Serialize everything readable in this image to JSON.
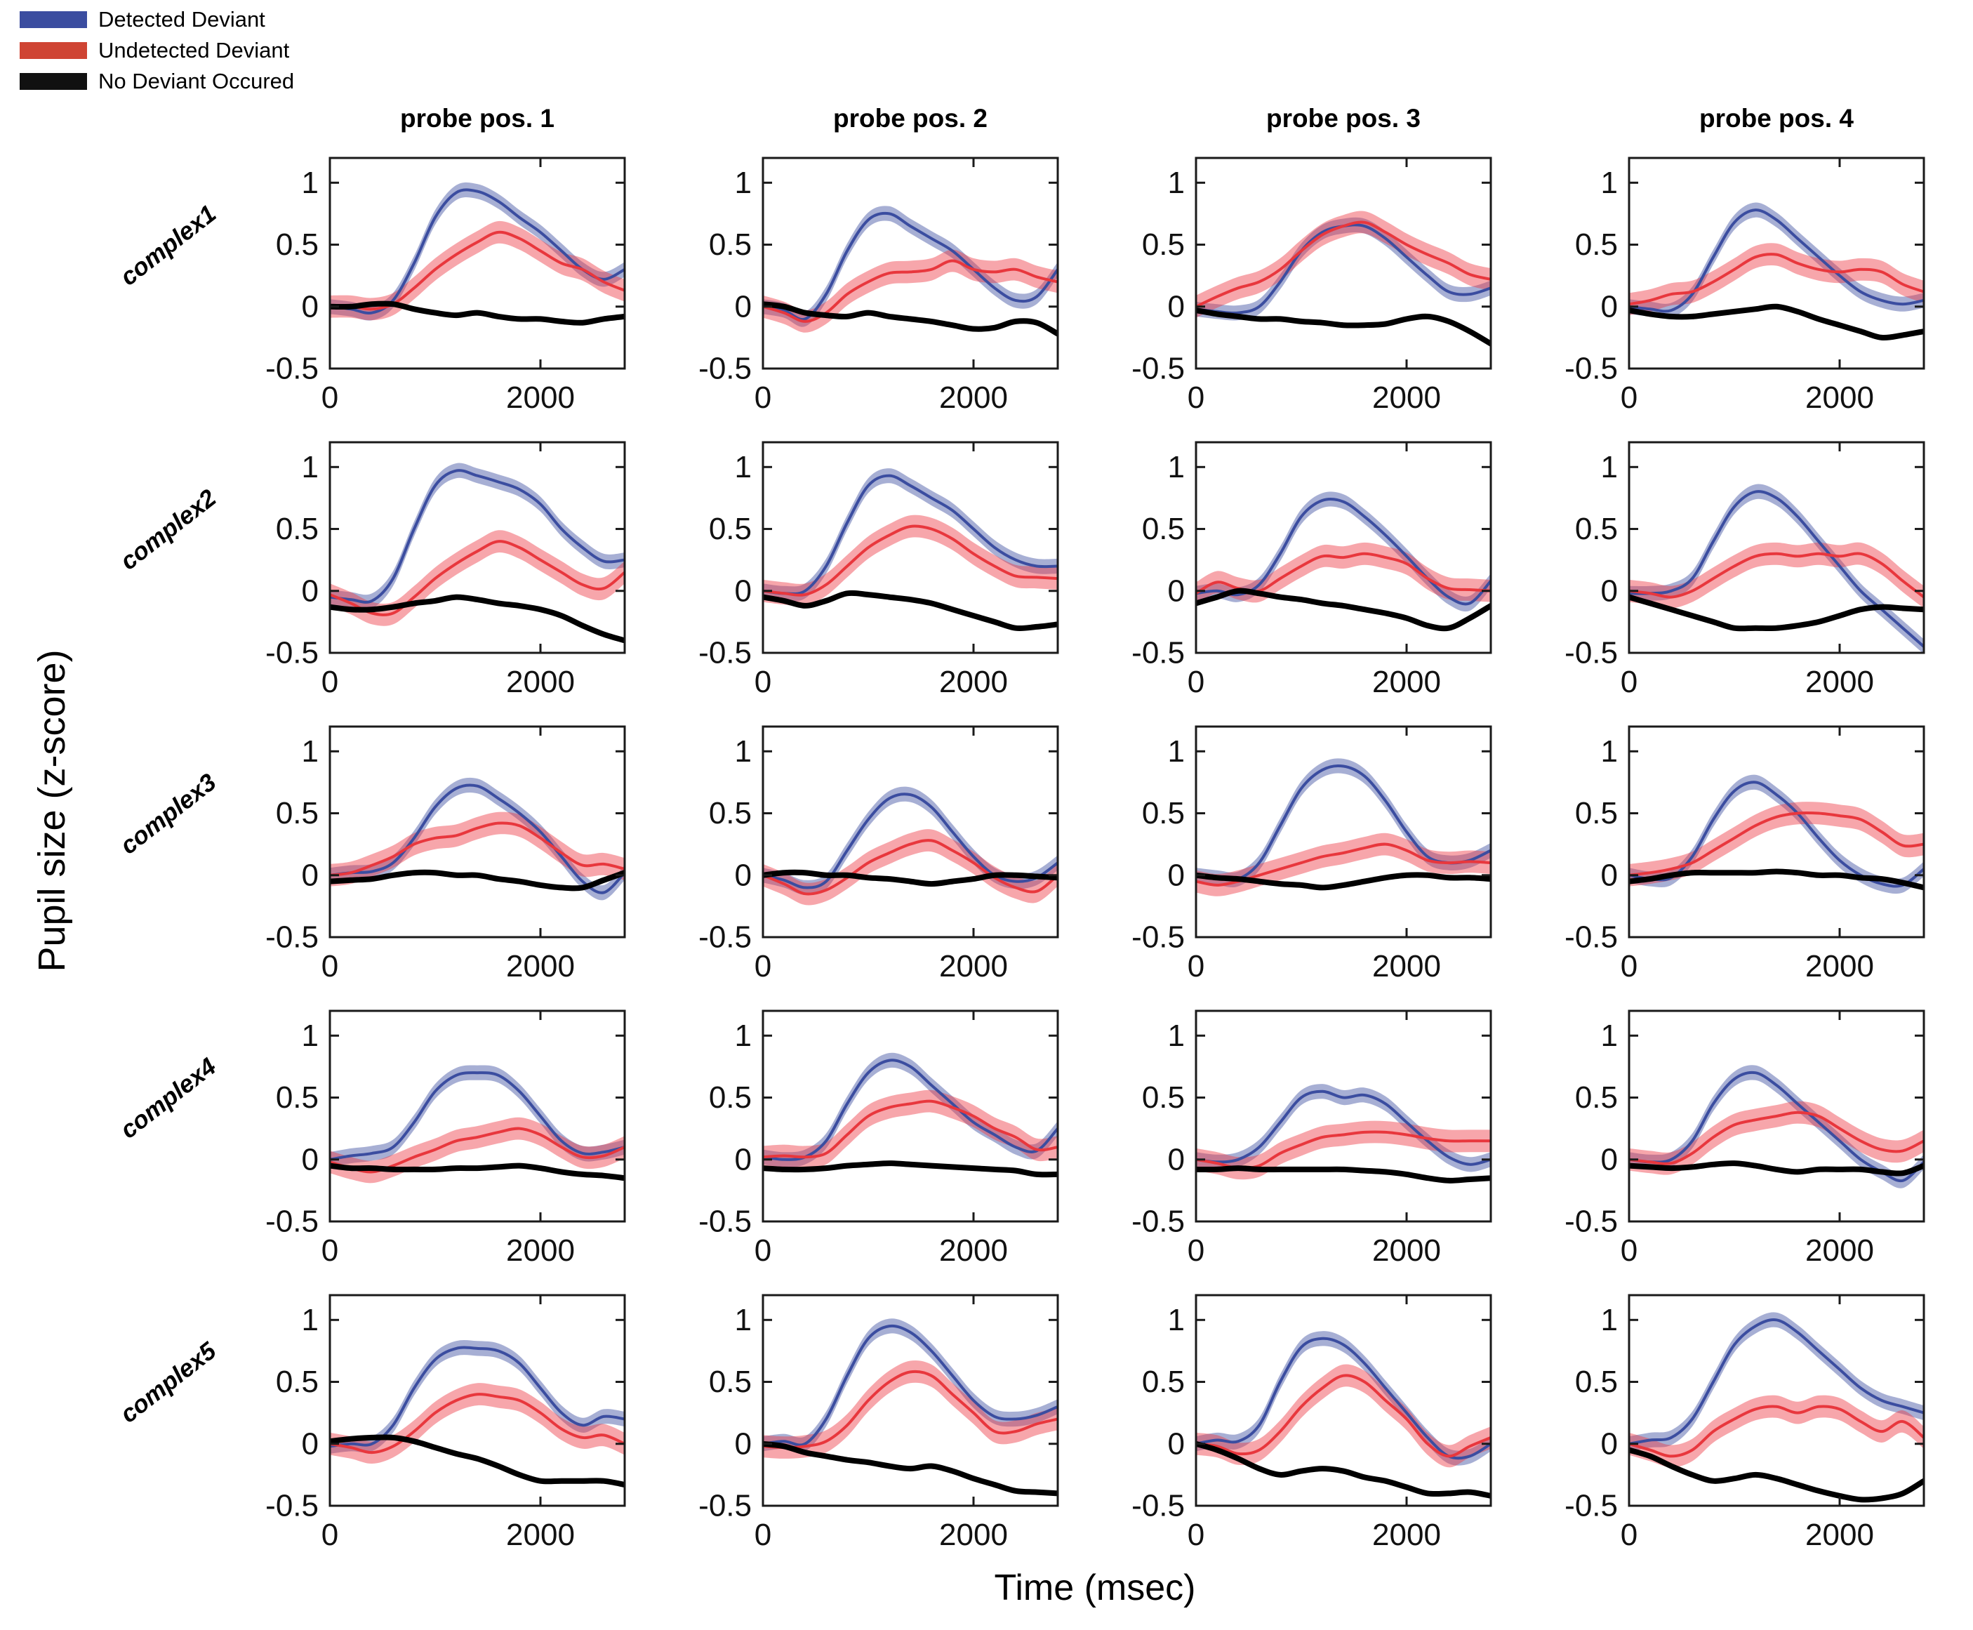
{
  "legend": {
    "items": [
      {
        "id": "detected",
        "label": "Detected Deviant",
        "color": "#3b4da0"
      },
      {
        "id": "undetected",
        "label": "Undetected Deviant",
        "color": "#cf4433"
      },
      {
        "id": "none",
        "label": "No Deviant Occured",
        "color": "#111111"
      }
    ]
  },
  "chart_data": {
    "type": "line",
    "title": "",
    "xlabel": "Time (msec)",
    "ylabel": "Pupil size (z-score)",
    "x_unit": "msec",
    "x": [
      0,
      200,
      400,
      600,
      800,
      1000,
      1200,
      1400,
      1600,
      1800,
      2000,
      2200,
      2400,
      2600,
      2800
    ],
    "xlim": [
      0,
      2800
    ],
    "ylim": [
      -0.5,
      1.2
    ],
    "xticks": [
      0,
      2000
    ],
    "yticks": [
      1,
      0.5,
      0,
      -0.5
    ],
    "grid": false,
    "legend_position": "top-left",
    "col_titles": [
      "probe pos. 1",
      "probe pos. 2",
      "probe pos. 3",
      "probe pos. 4"
    ],
    "row_titles": [
      "complex1",
      "complex2",
      "complex3",
      "complex4",
      "complex5"
    ],
    "series_meta": [
      {
        "key": "detected",
        "name": "Detected Deviant",
        "line_color": "#3b4da0",
        "fill_color": "#3b4da0",
        "fill_opacity": 0.45,
        "band": 0.06,
        "line_width": 4
      },
      {
        "key": "undetected",
        "name": "Undetected Deviant",
        "line_color": "#e8373d",
        "fill_color": "#ee3a44",
        "fill_opacity": 0.45,
        "band": 0.09,
        "line_width": 4
      },
      {
        "key": "none",
        "name": "No Deviant Occured",
        "line_color": "#000000",
        "fill_color": "#000000",
        "fill_opacity": 0.3,
        "band": 0.025,
        "line_width": 8
      }
    ],
    "subplots": [
      {
        "row": "complex1",
        "col": "probe pos. 1",
        "detected": [
          0,
          -0.02,
          -0.05,
          0.05,
          0.35,
          0.72,
          0.92,
          0.93,
          0.85,
          0.72,
          0.6,
          0.45,
          0.3,
          0.22,
          0.3
        ],
        "undetected": [
          0,
          0,
          -0.02,
          0.02,
          0.15,
          0.3,
          0.42,
          0.52,
          0.6,
          0.55,
          0.45,
          0.35,
          0.3,
          0.2,
          0.13
        ],
        "none": [
          0,
          0,
          0.02,
          0.02,
          -0.02,
          -0.05,
          -0.07,
          -0.05,
          -0.08,
          -0.1,
          -0.1,
          -0.12,
          -0.13,
          -0.1,
          -0.08
        ]
      },
      {
        "row": "complex1",
        "col": "probe pos. 2",
        "detected": [
          0,
          -0.03,
          -0.1,
          0.1,
          0.45,
          0.7,
          0.75,
          0.65,
          0.55,
          0.45,
          0.3,
          0.15,
          0.05,
          0.08,
          0.3
        ],
        "undetected": [
          0,
          -0.05,
          -0.12,
          -0.05,
          0.1,
          0.2,
          0.27,
          0.28,
          0.3,
          0.37,
          0.3,
          0.28,
          0.3,
          0.24,
          0.2
        ],
        "none": [
          0.02,
          0,
          -0.05,
          -0.07,
          -0.08,
          -0.05,
          -0.08,
          -0.1,
          -0.12,
          -0.15,
          -0.18,
          -0.17,
          -0.12,
          -0.13,
          -0.22
        ]
      },
      {
        "row": "complex1",
        "col": "probe pos. 3",
        "detected": [
          -0.02,
          -0.04,
          -0.05,
          0,
          0.2,
          0.45,
          0.6,
          0.65,
          0.65,
          0.55,
          0.4,
          0.25,
          0.12,
          0.1,
          0.15
        ],
        "undetected": [
          0,
          0.08,
          0.15,
          0.2,
          0.3,
          0.45,
          0.58,
          0.65,
          0.68,
          0.6,
          0.5,
          0.42,
          0.35,
          0.26,
          0.22
        ],
        "none": [
          -0.03,
          -0.06,
          -0.08,
          -0.1,
          -0.1,
          -0.12,
          -0.13,
          -0.15,
          -0.15,
          -0.14,
          -0.1,
          -0.08,
          -0.12,
          -0.2,
          -0.3
        ]
      },
      {
        "row": "complex1",
        "col": "probe pos. 4",
        "detected": [
          0,
          -0.02,
          -0.03,
          0.1,
          0.4,
          0.68,
          0.78,
          0.7,
          0.55,
          0.4,
          0.25,
          0.12,
          0.05,
          0.02,
          0.05
        ],
        "undetected": [
          0.02,
          0.05,
          0.1,
          0.12,
          0.2,
          0.3,
          0.4,
          0.42,
          0.35,
          0.3,
          0.28,
          0.3,
          0.28,
          0.18,
          0.12
        ],
        "none": [
          -0.03,
          -0.06,
          -0.08,
          -0.08,
          -0.06,
          -0.04,
          -0.02,
          0,
          -0.04,
          -0.1,
          -0.15,
          -0.2,
          -0.25,
          -0.23,
          -0.2
        ]
      },
      {
        "row": "complex2",
        "col": "probe pos. 1",
        "detected": [
          -0.05,
          -0.07,
          -0.08,
          0.1,
          0.5,
          0.85,
          0.97,
          0.93,
          0.88,
          0.82,
          0.7,
          0.5,
          0.35,
          0.24,
          0.25
        ],
        "undetected": [
          -0.03,
          -0.1,
          -0.18,
          -0.18,
          -0.05,
          0.1,
          0.22,
          0.32,
          0.4,
          0.35,
          0.25,
          0.15,
          0.05,
          0.02,
          0.15
        ],
        "none": [
          -0.13,
          -0.15,
          -0.15,
          -0.13,
          -0.1,
          -0.08,
          -0.05,
          -0.07,
          -0.1,
          -0.12,
          -0.15,
          -0.2,
          -0.28,
          -0.35,
          -0.4
        ]
      },
      {
        "row": "complex2",
        "col": "probe pos. 2",
        "detected": [
          0,
          -0.02,
          0,
          0.2,
          0.55,
          0.85,
          0.93,
          0.85,
          0.75,
          0.65,
          0.5,
          0.35,
          0.25,
          0.2,
          0.2
        ],
        "undetected": [
          0,
          -0.02,
          -0.03,
          0.05,
          0.2,
          0.35,
          0.45,
          0.52,
          0.5,
          0.42,
          0.3,
          0.2,
          0.12,
          0.11,
          0.1
        ],
        "none": [
          -0.05,
          -0.08,
          -0.12,
          -0.08,
          -0.02,
          -0.03,
          -0.05,
          -0.07,
          -0.1,
          -0.15,
          -0.2,
          -0.25,
          -0.3,
          -0.29,
          -0.27
        ]
      },
      {
        "row": "complex2",
        "col": "probe pos. 3",
        "detected": [
          -0.02,
          0,
          -0.03,
          0.05,
          0.3,
          0.6,
          0.73,
          0.72,
          0.6,
          0.45,
          0.28,
          0.1,
          -0.05,
          -0.1,
          0.08
        ],
        "undetected": [
          -0.02,
          0.07,
          0.02,
          0,
          0.1,
          0.2,
          0.28,
          0.27,
          0.3,
          0.27,
          0.22,
          0.1,
          0.02,
          0.01,
          0
        ],
        "none": [
          -0.1,
          -0.05,
          0,
          -0.02,
          -0.05,
          -0.07,
          -0.1,
          -0.12,
          -0.15,
          -0.18,
          -0.22,
          -0.28,
          -0.3,
          -0.22,
          -0.12
        ]
      },
      {
        "row": "complex2",
        "col": "probe pos. 4",
        "detected": [
          -0.02,
          -0.02,
          0,
          0.1,
          0.4,
          0.68,
          0.8,
          0.75,
          0.6,
          0.4,
          0.2,
          0,
          -0.15,
          -0.3,
          -0.45
        ],
        "undetected": [
          0,
          -0.02,
          -0.05,
          0,
          0.1,
          0.2,
          0.28,
          0.3,
          0.28,
          0.3,
          0.28,
          0.3,
          0.22,
          0.08,
          -0.05
        ],
        "none": [
          -0.05,
          -0.1,
          -0.15,
          -0.2,
          -0.25,
          -0.3,
          -0.3,
          -0.3,
          -0.28,
          -0.25,
          -0.2,
          -0.15,
          -0.13,
          -0.14,
          -0.15
        ]
      },
      {
        "row": "complex3",
        "col": "probe pos. 1",
        "detected": [
          0,
          0.02,
          0.03,
          0.1,
          0.3,
          0.55,
          0.7,
          0.72,
          0.62,
          0.5,
          0.35,
          0.15,
          -0.05,
          -0.14,
          0.02
        ],
        "undetected": [
          0,
          0.02,
          0.08,
          0.15,
          0.25,
          0.3,
          0.32,
          0.38,
          0.42,
          0.4,
          0.3,
          0.18,
          0.08,
          0.09,
          0.05
        ],
        "none": [
          -0.05,
          -0.04,
          -0.03,
          0,
          0.02,
          0.02,
          0,
          0,
          -0.03,
          -0.05,
          -0.08,
          -0.1,
          -0.1,
          -0.04,
          0.02
        ]
      },
      {
        "row": "complex3",
        "col": "probe pos. 2",
        "detected": [
          0,
          -0.04,
          -0.1,
          -0.05,
          0.2,
          0.45,
          0.62,
          0.65,
          0.55,
          0.35,
          0.15,
          0,
          -0.05,
          -0.02,
          0.1
        ],
        "undetected": [
          0,
          -0.07,
          -0.15,
          -0.12,
          -0.02,
          0.1,
          0.18,
          0.25,
          0.28,
          0.2,
          0.1,
          -0.02,
          -0.1,
          -0.13,
          0
        ],
        "none": [
          0,
          0.02,
          0.02,
          0,
          0,
          -0.02,
          -0.03,
          -0.05,
          -0.07,
          -0.05,
          -0.03,
          0,
          0,
          -0.01,
          -0.02
        ]
      },
      {
        "row": "complex3",
        "col": "probe pos. 3",
        "detected": [
          0,
          -0.02,
          -0.03,
          0.1,
          0.4,
          0.7,
          0.85,
          0.88,
          0.8,
          0.6,
          0.35,
          0.15,
          0.1,
          0.12,
          0.2
        ],
        "undetected": [
          -0.05,
          -0.08,
          -0.05,
          0,
          0.05,
          0.1,
          0.15,
          0.18,
          0.22,
          0.25,
          0.2,
          0.12,
          0.1,
          0.11,
          0.1
        ],
        "none": [
          0,
          -0.02,
          -0.03,
          -0.05,
          -0.07,
          -0.08,
          -0.1,
          -0.08,
          -0.05,
          -0.02,
          0,
          0,
          -0.02,
          -0.02,
          -0.03
        ]
      },
      {
        "row": "complex3",
        "col": "probe pos. 4",
        "detected": [
          0,
          -0.03,
          -0.02,
          0.15,
          0.45,
          0.68,
          0.75,
          0.65,
          0.5,
          0.3,
          0.12,
          0,
          -0.07,
          -0.08,
          0.05
        ],
        "undetected": [
          0,
          0.02,
          0.05,
          0.1,
          0.2,
          0.3,
          0.4,
          0.47,
          0.5,
          0.5,
          0.48,
          0.45,
          0.35,
          0.24,
          0.25
        ],
        "none": [
          -0.05,
          -0.03,
          0,
          0.02,
          0.02,
          0.02,
          0.02,
          0.03,
          0.02,
          0,
          0,
          -0.02,
          -0.03,
          -0.06,
          -0.1
        ]
      },
      {
        "row": "complex4",
        "col": "probe pos. 1",
        "detected": [
          0,
          0.03,
          0.05,
          0.1,
          0.3,
          0.55,
          0.68,
          0.7,
          0.68,
          0.55,
          0.35,
          0.15,
          0.05,
          0.06,
          0.1
        ],
        "undetected": [
          -0.02,
          -0.07,
          -0.1,
          -0.05,
          0.02,
          0.08,
          0.15,
          0.18,
          0.22,
          0.25,
          0.2,
          0.1,
          0.02,
          0.03,
          0.1
        ],
        "none": [
          -0.05,
          -0.07,
          -0.07,
          -0.08,
          -0.08,
          -0.08,
          -0.07,
          -0.07,
          -0.06,
          -0.05,
          -0.07,
          -0.1,
          -0.12,
          -0.13,
          -0.15
        ]
      },
      {
        "row": "complex4",
        "col": "probe pos. 2",
        "detected": [
          0.02,
          0,
          0.02,
          0.15,
          0.45,
          0.7,
          0.8,
          0.75,
          0.6,
          0.45,
          0.3,
          0.2,
          0.1,
          0.07,
          0.25
        ],
        "undetected": [
          0.02,
          0.03,
          0.02,
          0.05,
          0.2,
          0.35,
          0.42,
          0.45,
          0.47,
          0.42,
          0.35,
          0.25,
          0.18,
          0.08,
          0.1
        ],
        "none": [
          -0.07,
          -0.08,
          -0.08,
          -0.07,
          -0.05,
          -0.04,
          -0.03,
          -0.04,
          -0.05,
          -0.06,
          -0.07,
          -0.08,
          -0.09,
          -0.12,
          -0.12
        ]
      },
      {
        "row": "complex4",
        "col": "probe pos. 3",
        "detected": [
          0,
          -0.02,
          0,
          0.1,
          0.3,
          0.5,
          0.55,
          0.5,
          0.52,
          0.45,
          0.3,
          0.15,
          0.02,
          -0.04,
          0
        ],
        "undetected": [
          0,
          -0.03,
          -0.07,
          -0.05,
          0.05,
          0.12,
          0.18,
          0.2,
          0.22,
          0.22,
          0.2,
          0.17,
          0.15,
          0.15,
          0.15
        ],
        "none": [
          -0.08,
          -0.08,
          -0.07,
          -0.08,
          -0.08,
          -0.08,
          -0.08,
          -0.08,
          -0.09,
          -0.1,
          -0.12,
          -0.15,
          -0.17,
          -0.16,
          -0.15
        ]
      },
      {
        "row": "complex4",
        "col": "probe pos. 4",
        "detected": [
          0,
          -0.02,
          0,
          0.15,
          0.45,
          0.65,
          0.7,
          0.6,
          0.45,
          0.3,
          0.15,
          0,
          -0.1,
          -0.17,
          -0.02
        ],
        "undetected": [
          0,
          -0.02,
          -0.03,
          0.05,
          0.18,
          0.28,
          0.32,
          0.35,
          0.38,
          0.35,
          0.25,
          0.15,
          0.08,
          0.07,
          0.15
        ],
        "none": [
          -0.05,
          -0.06,
          -0.07,
          -0.06,
          -0.04,
          -0.03,
          -0.05,
          -0.08,
          -0.1,
          -0.08,
          -0.08,
          -0.08,
          -0.1,
          -0.11,
          -0.05
        ]
      },
      {
        "row": "complex5",
        "col": "probe pos. 1",
        "detected": [
          -0.02,
          0,
          0,
          0.15,
          0.45,
          0.68,
          0.77,
          0.77,
          0.75,
          0.65,
          0.45,
          0.25,
          0.15,
          0.22,
          0.2
        ],
        "undetected": [
          0,
          -0.03,
          -0.07,
          -0.02,
          0.1,
          0.25,
          0.35,
          0.4,
          0.38,
          0.35,
          0.25,
          0.12,
          0.05,
          0.07,
          0
        ],
        "none": [
          0.02,
          0.04,
          0.05,
          0.05,
          0.02,
          -0.03,
          -0.08,
          -0.12,
          -0.18,
          -0.25,
          -0.3,
          -0.3,
          -0.3,
          -0.3,
          -0.33
        ]
      },
      {
        "row": "complex5",
        "col": "probe pos. 2",
        "detected": [
          0,
          0.02,
          0,
          0.2,
          0.55,
          0.85,
          0.95,
          0.9,
          0.75,
          0.55,
          0.35,
          0.22,
          0.2,
          0.23,
          0.3
        ],
        "undetected": [
          -0.02,
          -0.03,
          -0.02,
          0.02,
          0.15,
          0.35,
          0.5,
          0.58,
          0.55,
          0.4,
          0.25,
          0.1,
          0.1,
          0.16,
          0.2
        ],
        "none": [
          0,
          -0.02,
          -0.07,
          -0.1,
          -0.13,
          -0.15,
          -0.18,
          -0.2,
          -0.18,
          -0.22,
          -0.28,
          -0.33,
          -0.38,
          -0.39,
          -0.4
        ]
      },
      {
        "row": "complex5",
        "col": "probe pos. 3",
        "detected": [
          0,
          0.03,
          0.02,
          0.15,
          0.5,
          0.78,
          0.85,
          0.8,
          0.65,
          0.45,
          0.25,
          0.05,
          -0.1,
          -0.1,
          0
        ],
        "undetected": [
          0,
          -0.02,
          -0.08,
          -0.05,
          0.1,
          0.3,
          0.45,
          0.55,
          0.5,
          0.35,
          0.2,
          0,
          -0.1,
          -0.02,
          0.05
        ],
        "none": [
          0,
          -0.05,
          -0.12,
          -0.2,
          -0.25,
          -0.22,
          -0.2,
          -0.22,
          -0.27,
          -0.3,
          -0.35,
          -0.4,
          -0.4,
          -0.39,
          -0.42
        ]
      },
      {
        "row": "complex5",
        "col": "probe pos. 4",
        "detected": [
          0,
          0.03,
          0.05,
          0.2,
          0.5,
          0.8,
          0.95,
          1.0,
          0.9,
          0.75,
          0.6,
          0.45,
          0.35,
          0.3,
          0.25
        ],
        "undetected": [
          0,
          -0.05,
          -0.1,
          -0.05,
          0.1,
          0.2,
          0.28,
          0.3,
          0.25,
          0.3,
          0.28,
          0.18,
          0.1,
          0.18,
          0.05
        ],
        "none": [
          -0.05,
          -0.1,
          -0.18,
          -0.25,
          -0.3,
          -0.28,
          -0.25,
          -0.28,
          -0.33,
          -0.38,
          -0.42,
          -0.45,
          -0.44,
          -0.4,
          -0.3
        ]
      }
    ]
  }
}
